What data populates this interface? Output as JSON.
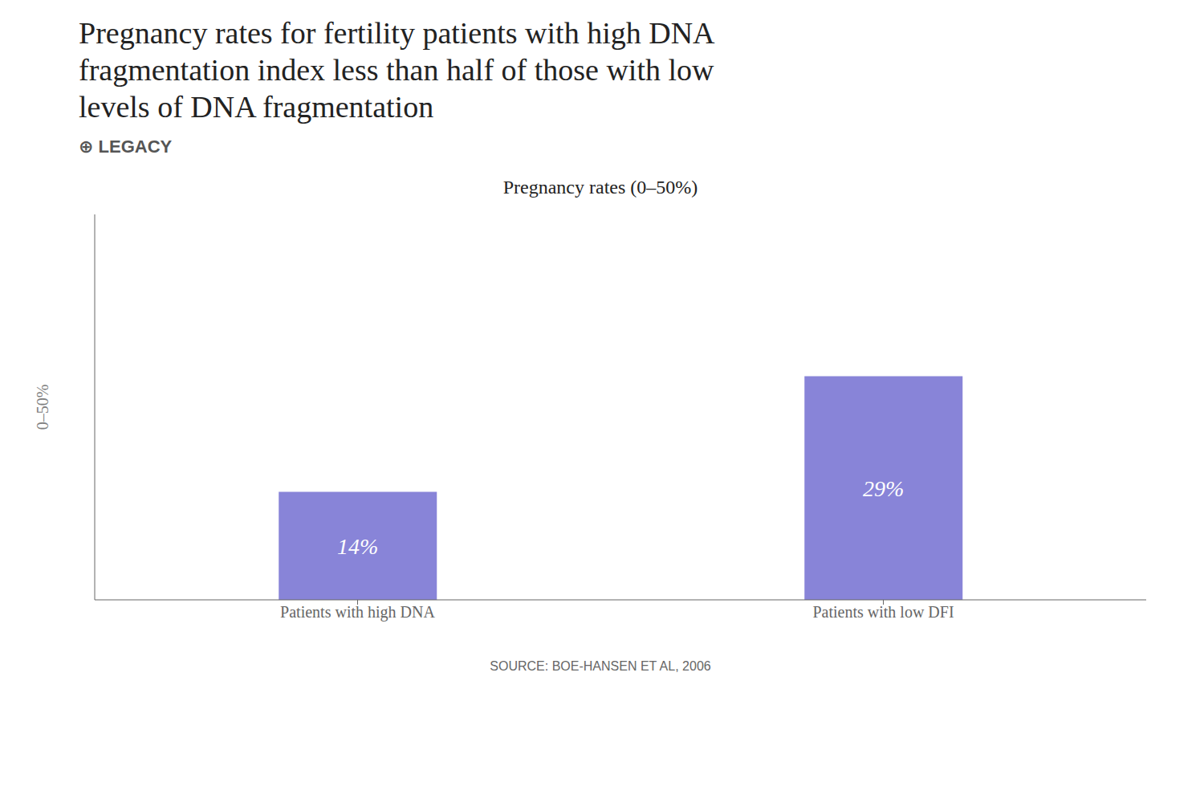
{
  "chart_data": {
    "type": "bar",
    "title": "Pregnancy rates for fertility patients with high DNA\nfragmentation index less than half of those with low\nlevels of DNA fragmentation",
    "subtitle": "Pregnancy rates (0–50%)",
    "ylabel": "0–50%",
    "annotations": [
      "⊕ LEGACY",
      "SOURCE: BOE-HANSEN ET AL, 2006"
    ],
    "categories": [
      "Patients with high DNA",
      "Patients with low DFI"
    ],
    "values": [
      14,
      29
    ],
    "value_labels": [
      "14%",
      "29%"
    ],
    "color": "#8884d8",
    "ylim": [
      0,
      50
    ],
    "grid": false,
    "data_labels": true,
    "tick_labels": "x"
  }
}
